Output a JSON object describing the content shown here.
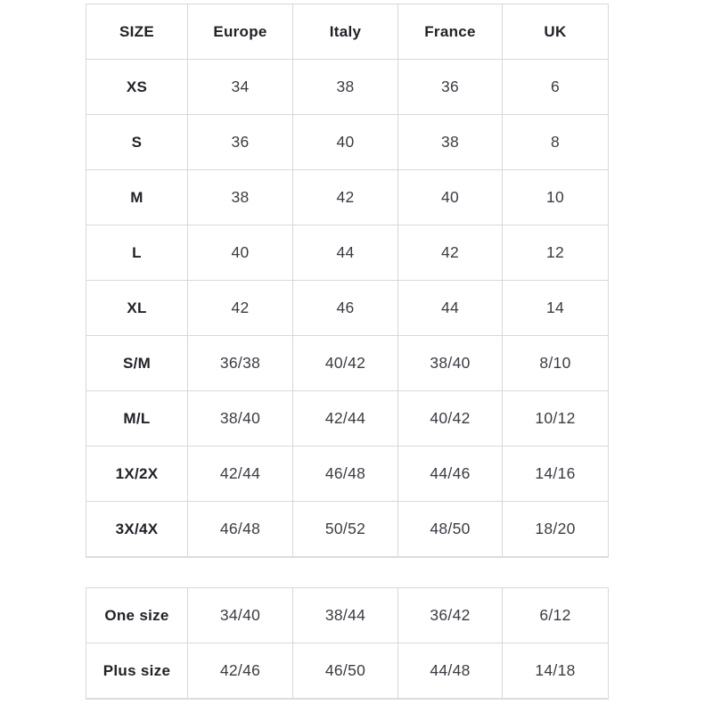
{
  "page": {
    "background": "#ffffff",
    "border_color": "#d8d8d8",
    "header_text_color": "#212228",
    "cell_text_color": "#3b3c43"
  },
  "size_table": {
    "headers": [
      "SIZE",
      "Europe",
      "Italy",
      "France",
      "UK"
    ],
    "rows": [
      {
        "size": "XS",
        "values": [
          "34",
          "38",
          "36",
          "6"
        ]
      },
      {
        "size": "S",
        "values": [
          "36",
          "40",
          "38",
          "8"
        ]
      },
      {
        "size": "M",
        "values": [
          "38",
          "42",
          "40",
          "10"
        ]
      },
      {
        "size": "L",
        "values": [
          "40",
          "44",
          "42",
          "12"
        ]
      },
      {
        "size": "XL",
        "values": [
          "42",
          "46",
          "44",
          "14"
        ]
      },
      {
        "size": "S/M",
        "values": [
          "36/38",
          "40/42",
          "38/40",
          "8/10"
        ]
      },
      {
        "size": "M/L",
        "values": [
          "38/40",
          "42/44",
          "40/42",
          "10/12"
        ]
      },
      {
        "size": "1X/2X",
        "values": [
          "42/44",
          "46/48",
          "44/46",
          "14/16"
        ]
      },
      {
        "size": "3X/4X",
        "values": [
          "46/48",
          "50/52",
          "48/50",
          "18/20"
        ]
      }
    ]
  },
  "special_table": {
    "rows": [
      {
        "size": "One size",
        "values": [
          "34/40",
          "38/44",
          "36/42",
          "6/12"
        ]
      },
      {
        "size": "Plus size",
        "values": [
          "42/46",
          "46/50",
          "44/48",
          "14/18"
        ]
      }
    ]
  }
}
